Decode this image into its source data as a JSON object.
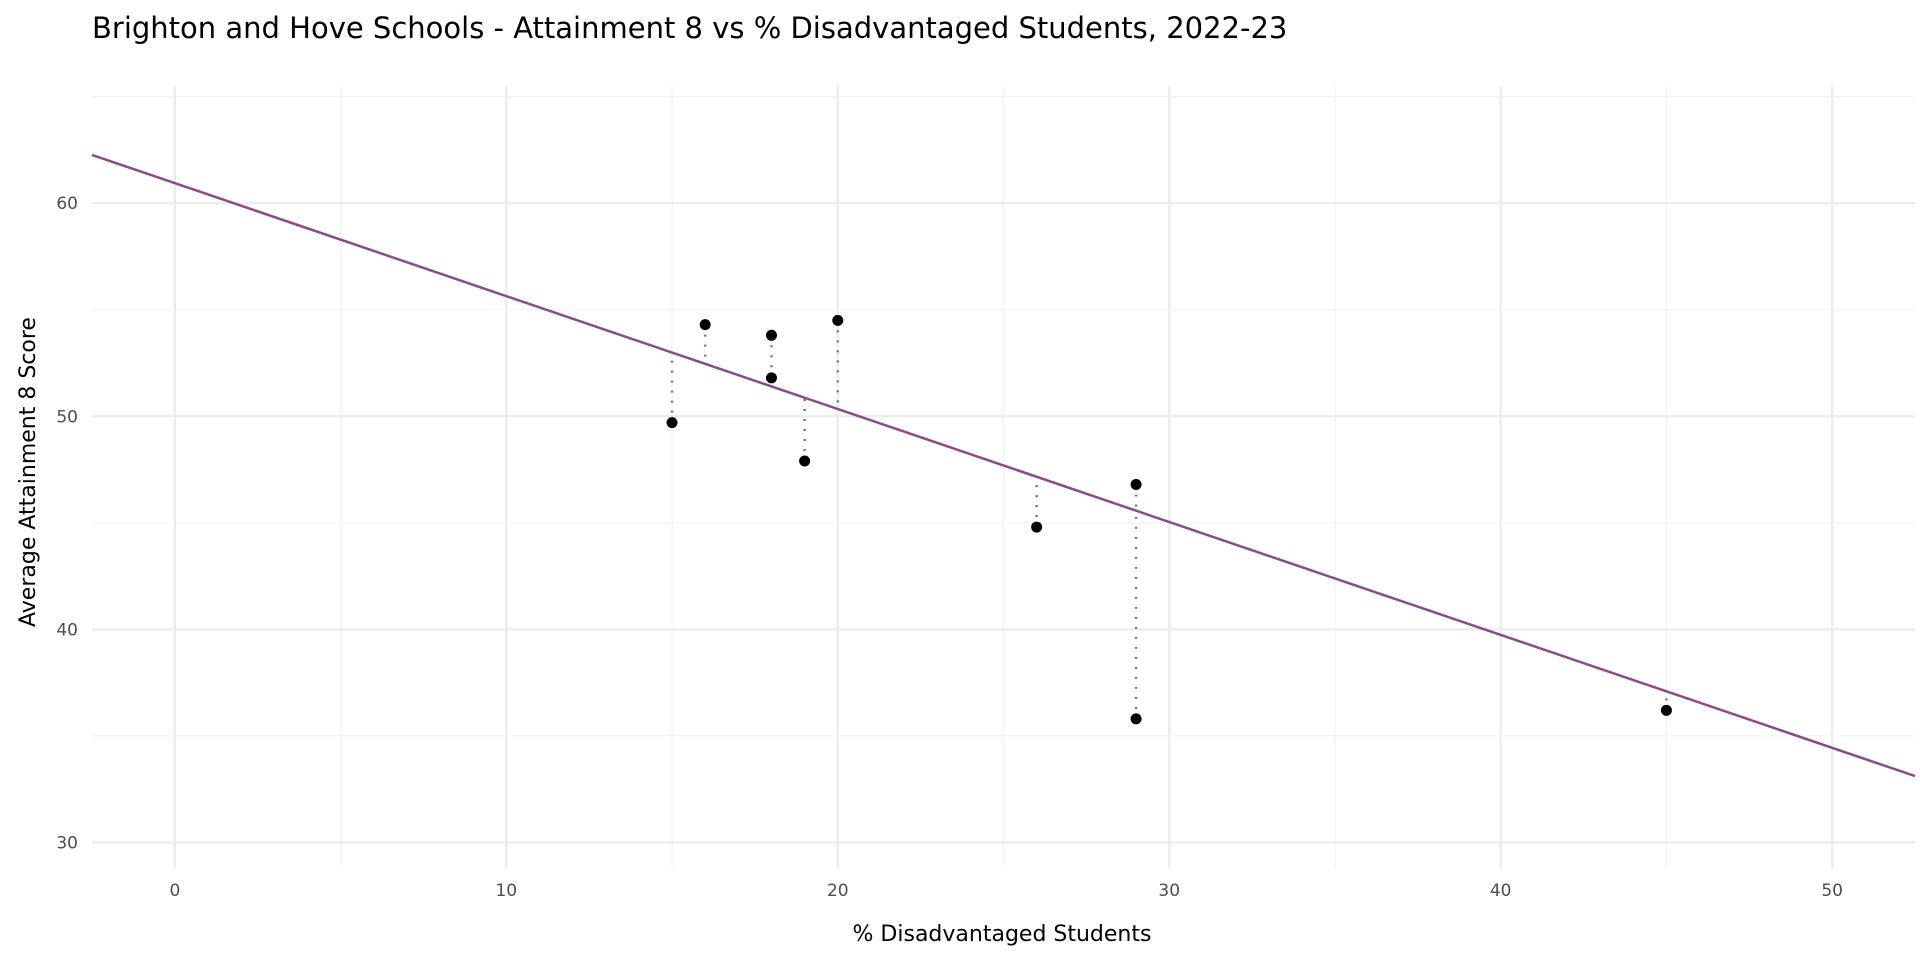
{
  "chart_data": {
    "type": "scatter",
    "title": "Brighton and Hove Schools - Attainment 8 vs % Disadvantaged Students, 2022-23",
    "xlabel": "% Disadvantaged Students",
    "ylabel": "Average Attainment 8 Score",
    "xlim": [
      -2.5,
      52.5
    ],
    "ylim": [
      28.8,
      65.5
    ],
    "xticks": [
      0,
      10,
      20,
      30,
      40,
      50
    ],
    "yticks": [
      30,
      40,
      50,
      60
    ],
    "grid": true,
    "points": [
      {
        "x": 15,
        "y": 49.7
      },
      {
        "x": 16,
        "y": 54.3
      },
      {
        "x": 18,
        "y": 53.8
      },
      {
        "x": 18,
        "y": 51.8
      },
      {
        "x": 19,
        "y": 47.9
      },
      {
        "x": 20,
        "y": 54.5
      },
      {
        "x": 26,
        "y": 44.8
      },
      {
        "x": 29,
        "y": 46.8
      },
      {
        "x": 29,
        "y": 35.8
      },
      {
        "x": 45,
        "y": 36.2
      }
    ],
    "regression": {
      "intercept": 60.94,
      "slope": -0.53
    },
    "line_color": "#8b4a8b",
    "point_color": "#000000",
    "residual_color": "#777777"
  }
}
